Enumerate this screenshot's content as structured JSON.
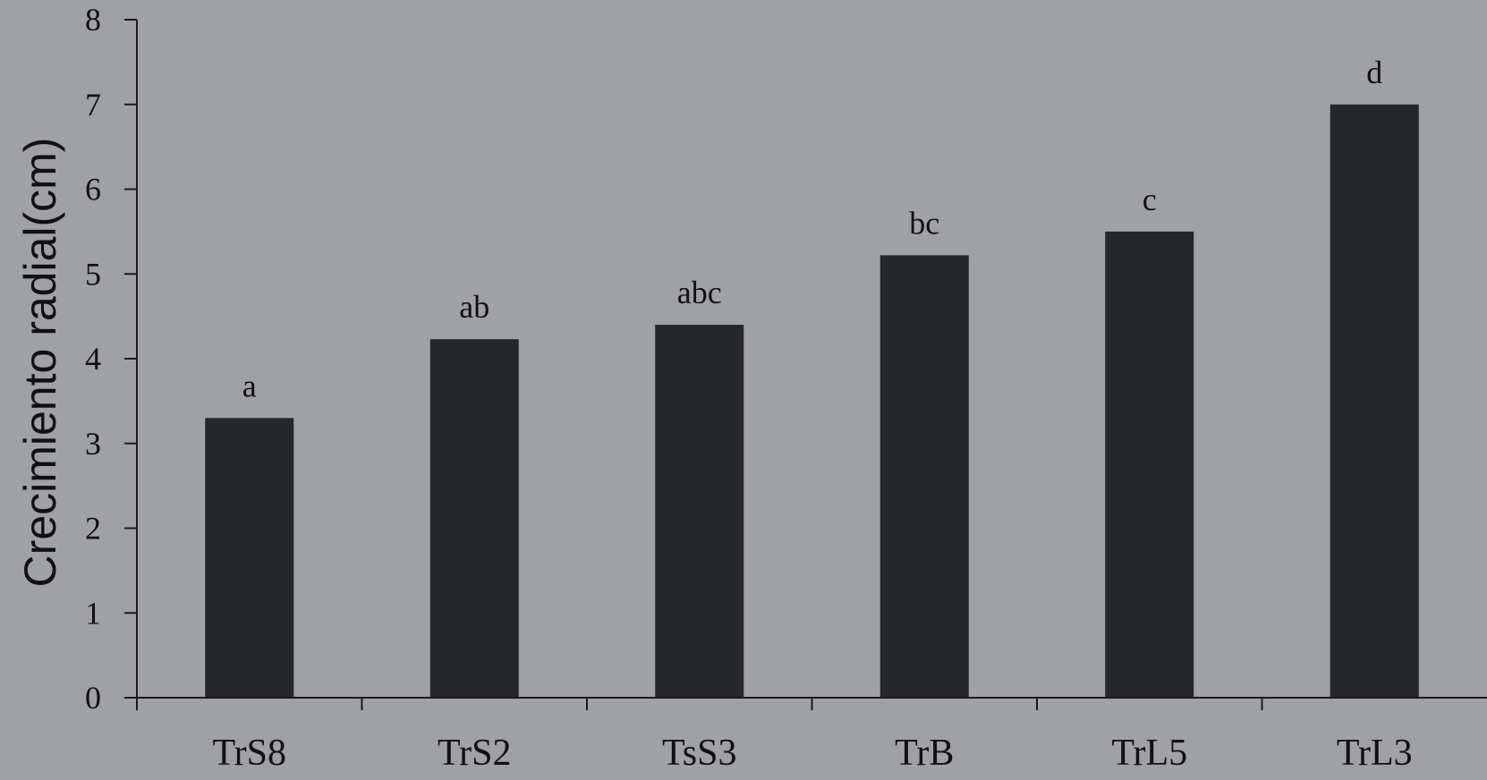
{
  "chart_data": {
    "type": "bar",
    "categories": [
      "TrS8",
      "TrS2",
      "TsS3",
      "TrB",
      "TrL5",
      "TrL3"
    ],
    "values": [
      3.3,
      4.23,
      4.4,
      5.22,
      5.5,
      7.0
    ],
    "significance_letters": [
      "a",
      "ab",
      "abc",
      "bc",
      "c",
      "d"
    ],
    "title": "",
    "xlabel": "",
    "ylabel": "Crecimiento radial(cm)",
    "ylim": [
      0,
      8
    ],
    "yticks": [
      "0",
      "1",
      "2",
      "3",
      "4",
      "5",
      "6",
      "7",
      "8"
    ],
    "grid": false,
    "legend": "none",
    "colors": {
      "background": "#9fa1a5",
      "bar": "#262729",
      "axis": "#1a1a1a"
    }
  }
}
